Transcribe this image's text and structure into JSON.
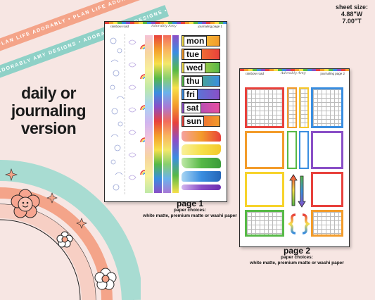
{
  "ribbons": {
    "top_text": "PLAN LIFE ADORABLY • PLAN LIFE ADORABLY • PLAN LIFE ADORABLY •",
    "bottom_text": "ADORABLY AMY DESIGNS • ADORABLY AMY DESIGNS • ADORABLY AMY DESIGNS •"
  },
  "headline": {
    "line1": "daily or",
    "line2": "journaling",
    "line3": "version"
  },
  "sheet_size": {
    "label": "sheet size:",
    "width": "4.88\"W",
    "height": "7.00\"T"
  },
  "page1": {
    "header_left": "rainbow road",
    "logo": "Adorably Amy",
    "header_right": "journaling page 1",
    "days": [
      "mon",
      "tue",
      "wed",
      "thu",
      "fri",
      "sat",
      "sun"
    ],
    "label": "page 1",
    "paper_title": "paper choices:",
    "paper_options": "white matte, premium matte or washi paper"
  },
  "page2": {
    "header_left": "rainbow road",
    "logo": "Adorably Amy",
    "header_right": "journaling page 2",
    "label": "page 2",
    "paper_title": "paper choices:",
    "paper_options": "white matte, premium matte or washi paper"
  },
  "colors": {
    "background": "#f7e6e3",
    "ribbon_top": "#f4a489",
    "ribbon_bottom": "#8fd1c7",
    "arc_teal": "#a8dcd2",
    "arc_orange": "#f4a489",
    "arc_peach": "#f7cfc4",
    "rainbow": [
      "#e8413c",
      "#f39c2b",
      "#f7e04a",
      "#57b947",
      "#3a8ee0",
      "#8a4fc7"
    ]
  }
}
